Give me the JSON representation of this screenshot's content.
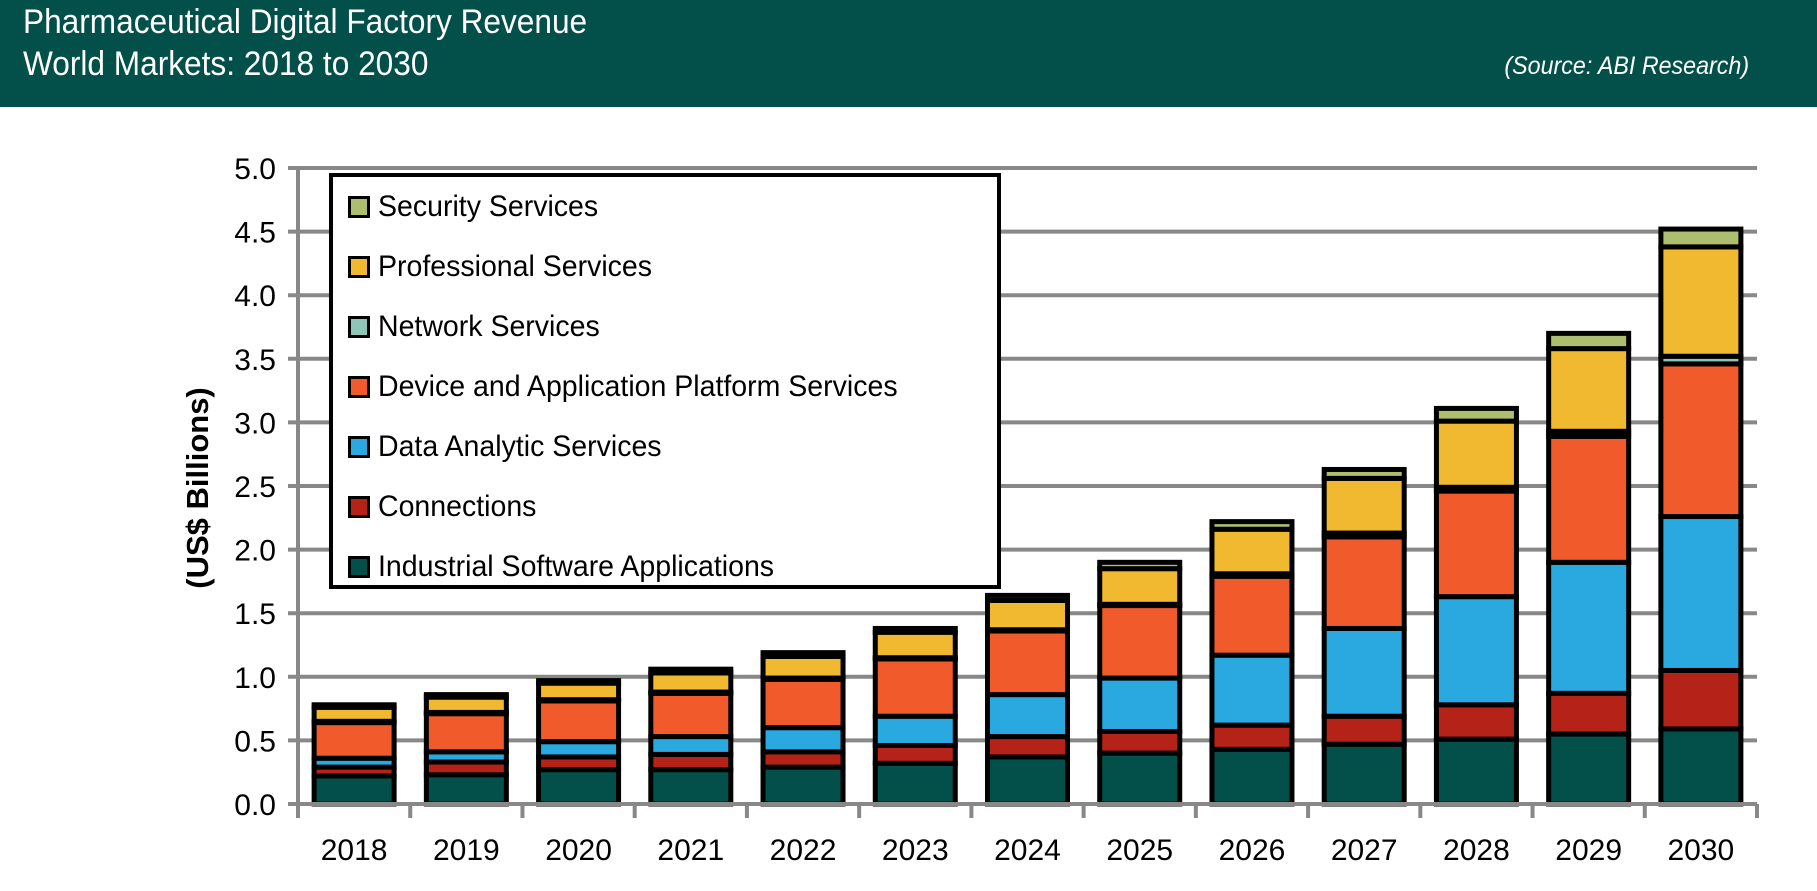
{
  "header": {
    "title_line1": "Pharmaceutical Digital Factory Revenue",
    "title_line2": "World Markets: 2018 to 2030",
    "source": "(Source: ABI Research)",
    "background_color": "#03504a"
  },
  "chart_data": {
    "type": "bar",
    "stacked": true,
    "title": "Pharmaceutical Digital Factory Revenue World Markets: 2018 to 2030",
    "xlabel": "",
    "ylabel": "(US$ Billions)",
    "ylim": [
      0,
      5.0
    ],
    "yticks": [
      "0.0",
      "0.5",
      "1.0",
      "1.5",
      "2.0",
      "2.5",
      "3.0",
      "3.5",
      "4.0",
      "4.5",
      "5.0"
    ],
    "grid": true,
    "legend_position": "top-left",
    "categories": [
      "2018",
      "2019",
      "2020",
      "2021",
      "2022",
      "2023",
      "2024",
      "2025",
      "2026",
      "2027",
      "2028",
      "2029",
      "2030"
    ],
    "series": [
      {
        "name": "Industrial Software Applications",
        "color": "#03504a",
        "values": [
          0.22,
          0.23,
          0.27,
          0.27,
          0.29,
          0.32,
          0.37,
          0.4,
          0.43,
          0.47,
          0.51,
          0.55,
          0.59
        ]
      },
      {
        "name": "Connections",
        "color": "#b52217",
        "values": [
          0.07,
          0.1,
          0.1,
          0.12,
          0.12,
          0.14,
          0.16,
          0.17,
          0.19,
          0.22,
          0.27,
          0.32,
          0.46
        ]
      },
      {
        "name": "Data Analytic Services",
        "color": "#2aa9e0",
        "values": [
          0.07,
          0.08,
          0.12,
          0.14,
          0.19,
          0.23,
          0.33,
          0.42,
          0.55,
          0.69,
          0.85,
          1.03,
          1.21
        ]
      },
      {
        "name": "Device and Application Platform Services",
        "color": "#f15a2b",
        "values": [
          0.28,
          0.3,
          0.32,
          0.34,
          0.38,
          0.45,
          0.5,
          0.57,
          0.62,
          0.72,
          0.83,
          0.99,
          1.2
        ]
      },
      {
        "name": "Network Services",
        "color": "#8fc5b6",
        "values": [
          0.01,
          0.01,
          0.01,
          0.01,
          0.01,
          0.01,
          0.01,
          0.01,
          0.02,
          0.03,
          0.03,
          0.04,
          0.06
        ]
      },
      {
        "name": "Professional Services",
        "color": "#f0b92f",
        "values": [
          0.11,
          0.12,
          0.13,
          0.15,
          0.17,
          0.2,
          0.23,
          0.28,
          0.35,
          0.43,
          0.52,
          0.65,
          0.86
        ]
      },
      {
        "name": "Security Services",
        "color": "#adbf6e",
        "values": [
          0.02,
          0.02,
          0.02,
          0.03,
          0.03,
          0.03,
          0.04,
          0.05,
          0.06,
          0.07,
          0.1,
          0.12,
          0.14
        ]
      }
    ]
  }
}
